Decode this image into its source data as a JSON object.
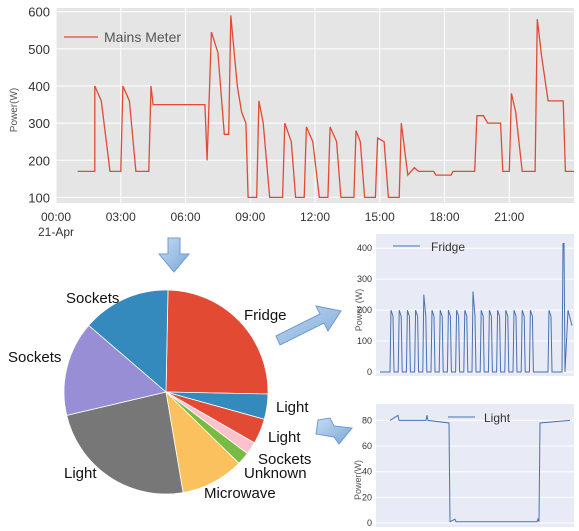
{
  "chart_data": [
    {
      "type": "line",
      "ylabel": "Power(W)",
      "ylim": [
        85,
        610
      ],
      "yticks": [
        100,
        200,
        300,
        400,
        500,
        600
      ],
      "xticks": [
        "00:00",
        "03:00",
        "06:00",
        "09:00",
        "12:00",
        "15:00",
        "18:00",
        "21:00"
      ],
      "xtick_sub": "21-Apr",
      "xrange_hours": [
        0,
        24
      ],
      "grid": true,
      "legend_position": "top-left",
      "series": [
        {
          "name": "Mains Meter",
          "color": "#e24a33",
          "points": [
            [
              1,
              170
            ],
            [
              1.8,
              170
            ],
            [
              1.8,
              400
            ],
            [
              2.1,
              360
            ],
            [
              2.5,
              170
            ],
            [
              3.0,
              170
            ],
            [
              3.1,
              400
            ],
            [
              3.4,
              360
            ],
            [
              3.7,
              170
            ],
            [
              4.3,
              170
            ],
            [
              4.4,
              400
            ],
            [
              4.5,
              350
            ],
            [
              6.9,
              350
            ],
            [
              7.0,
              200
            ],
            [
              7.2,
              545
            ],
            [
              7.5,
              490
            ],
            [
              7.8,
              270
            ],
            [
              8.0,
              270
            ],
            [
              8.1,
              590
            ],
            [
              8.4,
              400
            ],
            [
              8.6,
              330
            ],
            [
              8.8,
              300
            ],
            [
              8.9,
              100
            ],
            [
              9.3,
              100
            ],
            [
              9.4,
              360
            ],
            [
              9.6,
              300
            ],
            [
              9.9,
              100
            ],
            [
              10.5,
              100
            ],
            [
              10.6,
              300
            ],
            [
              10.9,
              250
            ],
            [
              11.1,
              100
            ],
            [
              11.5,
              100
            ],
            [
              11.6,
              290
            ],
            [
              11.9,
              250
            ],
            [
              12.2,
              100
            ],
            [
              12.6,
              100
            ],
            [
              12.7,
              290
            ],
            [
              13.0,
              250
            ],
            [
              13.2,
              100
            ],
            [
              13.8,
              100
            ],
            [
              13.9,
              280
            ],
            [
              14.1,
              250
            ],
            [
              14.3,
              100
            ],
            [
              14.8,
              100
            ],
            [
              14.9,
              260
            ],
            [
              15.2,
              250
            ],
            [
              15.4,
              100
            ],
            [
              15.9,
              100
            ],
            [
              16.0,
              300
            ],
            [
              16.3,
              160
            ],
            [
              16.6,
              180
            ],
            [
              16.8,
              170
            ],
            [
              17.5,
              170
            ],
            [
              17.6,
              160
            ],
            [
              18.3,
              160
            ],
            [
              18.4,
              170
            ],
            [
              19.4,
              170
            ],
            [
              19.5,
              320
            ],
            [
              19.8,
              320
            ],
            [
              20.0,
              300
            ],
            [
              20.6,
              300
            ],
            [
              20.7,
              170
            ],
            [
              21.0,
              170
            ],
            [
              21.1,
              380
            ],
            [
              21.3,
              330
            ],
            [
              21.6,
              170
            ],
            [
              22.2,
              170
            ],
            [
              22.3,
              580
            ],
            [
              22.5,
              480
            ],
            [
              22.8,
              360
            ],
            [
              23.5,
              360
            ],
            [
              23.6,
              170
            ],
            [
              24.0,
              170
            ]
          ]
        }
      ]
    },
    {
      "type": "pie",
      "labels": [
        "Fridge",
        "Light",
        "Light",
        "Sockets",
        "Unknown",
        "Microwave",
        "Light",
        "Sockets",
        "Sockets"
      ],
      "values": [
        25,
        4,
        4,
        2,
        2,
        10,
        24,
        15,
        14
      ],
      "colors": [
        "#e24a33",
        "#348abd",
        "#e24a33",
        "#fbc1cc",
        "#77bb44",
        "#fbc15e",
        "#777777",
        "#988ed5",
        "#348abd"
      ]
    },
    {
      "type": "line",
      "ylabel": "Power (W)",
      "ylim": [
        0,
        420
      ],
      "yticks": [
        0,
        100,
        200,
        300,
        400
      ],
      "grid": true,
      "legend_position": "top-left",
      "series": [
        {
          "name": "Fridge",
          "color": "#4a72b0",
          "cycles": 18,
          "peak": 200,
          "spike": 415
        }
      ]
    },
    {
      "type": "line",
      "ylabel": "Power(W)",
      "ylim": [
        0,
        85
      ],
      "yticks": [
        0,
        20,
        40,
        60,
        80
      ],
      "grid": true,
      "legend_position": "top-center",
      "series": [
        {
          "name": "Light",
          "color": "#4a72b0",
          "high": 80,
          "low": 1
        }
      ]
    }
  ]
}
